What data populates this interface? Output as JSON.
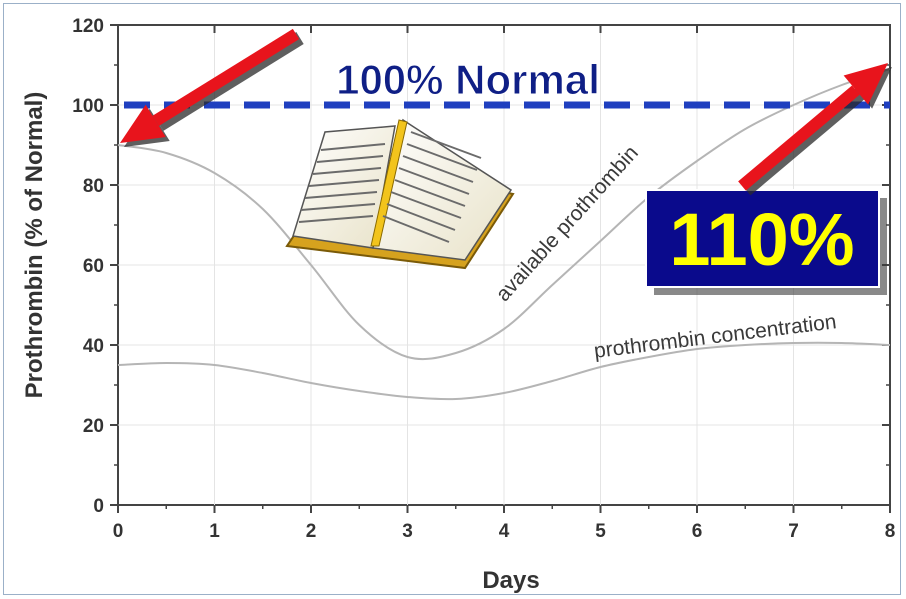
{
  "chart_data": {
    "type": "line",
    "xlabel": "Days",
    "ylabel": "Prothrombin (% of Normal)",
    "xlim": [
      0,
      8
    ],
    "ylim": [
      0,
      120
    ],
    "x_ticks": [
      "0",
      "1",
      "2",
      "3",
      "4",
      "5",
      "6",
      "7",
      "8"
    ],
    "y_ticks": [
      "0",
      "20",
      "40",
      "60",
      "80",
      "100",
      "120"
    ],
    "grid": true,
    "series": [
      {
        "name": "available prothrombin",
        "color": "#b5b5b5",
        "x": [
          0,
          0.5,
          1,
          1.5,
          2,
          2.5,
          3,
          3.5,
          4,
          4.5,
          5,
          5.5,
          6,
          6.5,
          7,
          7.5,
          8
        ],
        "y": [
          90,
          88,
          83,
          74,
          60,
          45,
          37,
          38,
          44,
          55,
          66,
          77,
          86,
          94,
          100,
          105,
          109
        ]
      },
      {
        "name": "prothrombin concentration",
        "color": "#b5b5b5",
        "x": [
          0,
          0.5,
          1,
          1.5,
          2,
          2.5,
          3,
          3.5,
          4,
          4.5,
          5,
          5.5,
          6,
          6.5,
          7,
          7.5,
          8
        ],
        "y": [
          35,
          35.5,
          35,
          33,
          30.5,
          28.5,
          27,
          26.5,
          28,
          31,
          34.5,
          37,
          39,
          40,
          40.5,
          40.5,
          40
        ]
      }
    ],
    "reference_line": {
      "value": 100,
      "label": "100% Normal",
      "color": "#1f3fbf"
    },
    "annotations": [
      {
        "text": "110%",
        "y": 110,
        "box_color": "#0a0a8c",
        "text_color": "#ffff00"
      }
    ],
    "arrows": [
      {
        "from": "100% Normal",
        "to_x": 0,
        "to_y": 90,
        "color": "#e8141c"
      },
      {
        "from": "110%",
        "to_x": 8,
        "to_y": 110,
        "color": "#e8141c"
      }
    ],
    "illustration": "open-book-icon"
  }
}
